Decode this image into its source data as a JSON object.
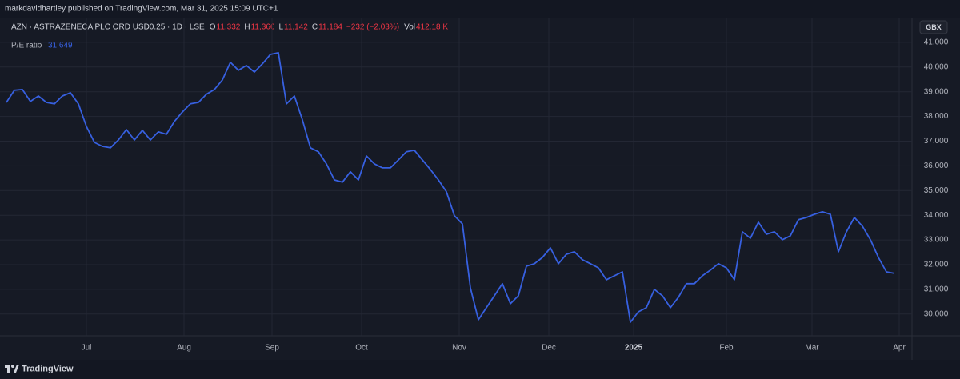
{
  "header": {
    "publisher": "markdavidhartley published on TradingView.com, Mar 31, 2025 15:09 UTC+1"
  },
  "legend": {
    "instrument": "AZN · ASTRAZENECA PLC ORD USD0.25 · 1D · LSE",
    "ohlc": [
      {
        "label": "O",
        "value": "11,332"
      },
      {
        "label": "H",
        "value": "11,366"
      },
      {
        "label": "L",
        "value": "11,142"
      },
      {
        "label": "C",
        "value": "11,184"
      }
    ],
    "change": "−232 (−2.03%)",
    "volume": {
      "label": "Vol",
      "value": "412.18 K"
    },
    "indicator": {
      "name": "P/E ratio",
      "value": 31.649
    }
  },
  "currency": "GBX",
  "footer": {
    "brand": "TradingView"
  },
  "chart_data": {
    "type": "line",
    "color": "#3760e0",
    "grid": true,
    "values": [
      38.57,
      39.06,
      39.09,
      38.61,
      38.83,
      38.57,
      38.51,
      38.83,
      38.96,
      38.51,
      37.6,
      36.95,
      36.79,
      36.73,
      37.05,
      37.47,
      37.05,
      37.44,
      37.05,
      37.38,
      37.28,
      37.8,
      38.18,
      38.51,
      38.57,
      38.9,
      39.09,
      39.48,
      40.19,
      39.87,
      40.06,
      39.8,
      40.13,
      40.51,
      40.58,
      38.51,
      38.83,
      37.86,
      36.73,
      36.57,
      36.08,
      35.43,
      35.34,
      35.76,
      35.43,
      36.4,
      36.08,
      35.92,
      35.92,
      36.24,
      36.57,
      36.63,
      36.24,
      35.85,
      35.43,
      34.95,
      33.98,
      33.65,
      31.06,
      29.77,
      30.26,
      30.74,
      31.23,
      30.42,
      30.74,
      31.94,
      32.04,
      32.29,
      32.68,
      32.04,
      32.42,
      32.52,
      32.2,
      32.04,
      31.87,
      31.39,
      31.55,
      31.71,
      29.67,
      30.09,
      30.26,
      31.0,
      30.74,
      30.26,
      30.68,
      31.23,
      31.23,
      31.55,
      31.78,
      32.04,
      31.87,
      31.39,
      33.33,
      33.07,
      33.72,
      33.23,
      33.33,
      33.01,
      33.17,
      33.82,
      33.91,
      34.04,
      34.14,
      34.04,
      32.52,
      33.33,
      33.91,
      33.56,
      33.01,
      32.29,
      31.71,
      31.649
    ],
    "xlim": [
      -0.8,
      113.2
    ],
    "xticks": [
      {
        "value": 10,
        "label": "Jul"
      },
      {
        "value": 22.2,
        "label": "Aug"
      },
      {
        "value": 33.2,
        "label": "Sep"
      },
      {
        "value": 44.4,
        "label": "Oct"
      },
      {
        "value": 56.6,
        "label": "Nov"
      },
      {
        "value": 67.8,
        "label": "Dec"
      },
      {
        "value": 78.4,
        "label": "2025"
      },
      {
        "value": 90,
        "label": "Feb"
      },
      {
        "value": 100.7,
        "label": "Mar"
      },
      {
        "value": 111.6,
        "label": "Apr"
      }
    ],
    "ylim": [
      29.12,
      42.0
    ],
    "yticks": [
      {
        "value": 30,
        "label": "30.000"
      },
      {
        "value": 31,
        "label": "31.000"
      },
      {
        "value": 32,
        "label": "32.000"
      },
      {
        "value": 33,
        "label": "33.000"
      },
      {
        "value": 34,
        "label": "34.000"
      },
      {
        "value": 35,
        "label": "35.000"
      },
      {
        "value": 36,
        "label": "36.000"
      },
      {
        "value": 37,
        "label": "37.000"
      },
      {
        "value": 38,
        "label": "38.000"
      },
      {
        "value": 39,
        "label": "39.000"
      },
      {
        "value": 40,
        "label": "40.000"
      },
      {
        "value": 41,
        "label": "41.000"
      }
    ]
  }
}
